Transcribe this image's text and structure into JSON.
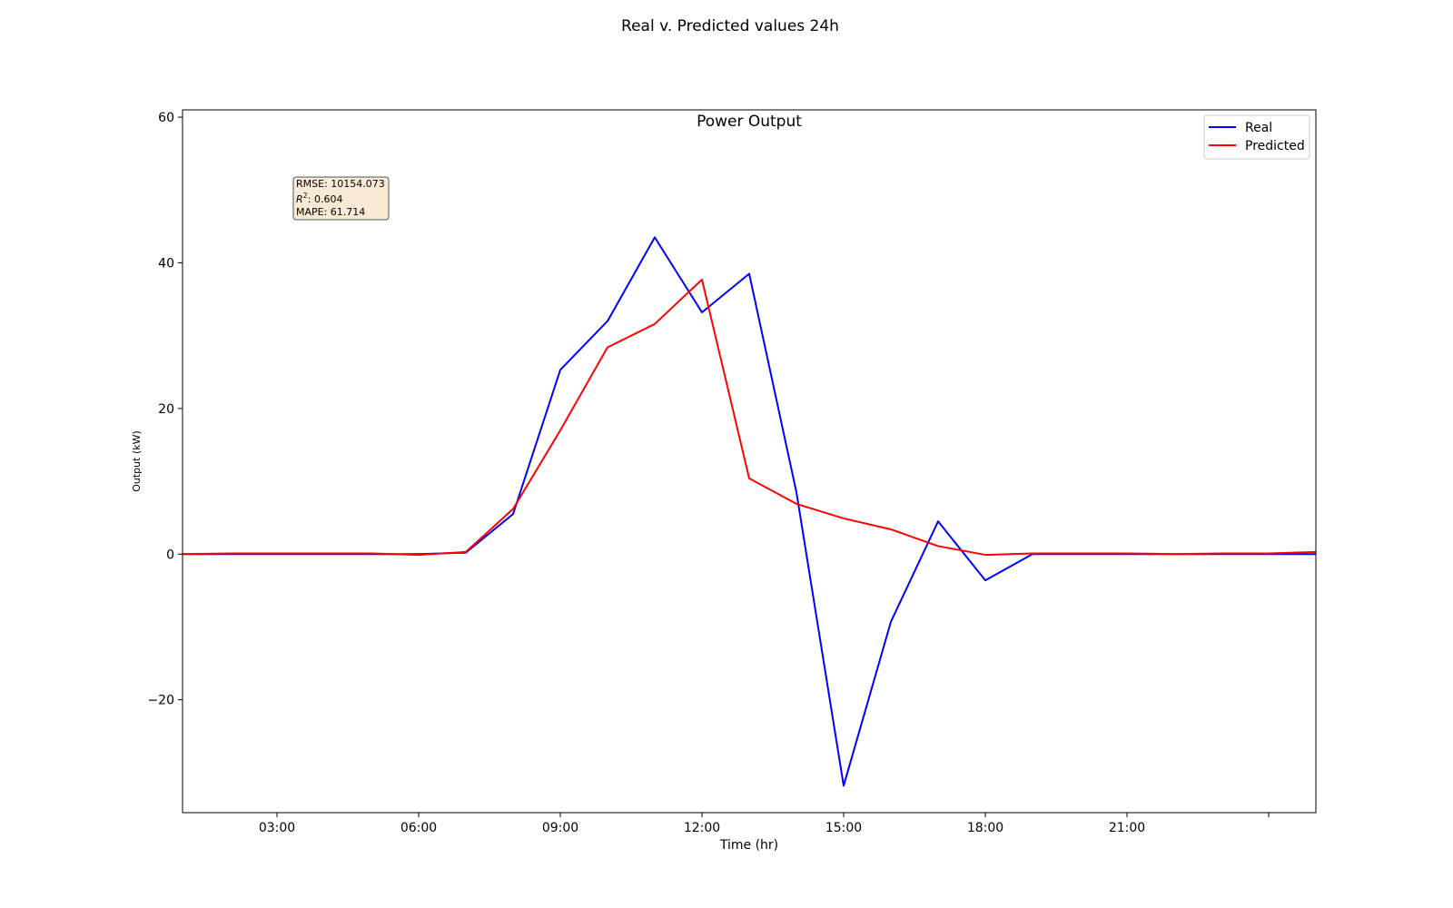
{
  "figure": {
    "suptitle": "Real v. Predicted values 24h"
  },
  "chart_data": {
    "type": "line",
    "title": "Power Output",
    "xlabel": "Time (hr)",
    "ylabel": "Output (kW)",
    "xlim": [
      1,
      25
    ],
    "ylim": [
      -35.5,
      61
    ],
    "x_ticks": [
      3,
      6,
      9,
      12,
      15,
      18,
      21,
      24
    ],
    "x_tick_labels": [
      "03:00",
      "06:00",
      "09:00",
      "12:00",
      "15:00",
      "18:00",
      "21:00",
      ""
    ],
    "y_ticks": [
      -20,
      0,
      20,
      40,
      60
    ],
    "y_tick_labels": [
      "−20",
      "0",
      "20",
      "40",
      "60"
    ],
    "x": [
      1,
      2,
      3,
      4,
      5,
      6,
      7,
      8,
      9,
      10,
      11,
      12,
      13,
      14,
      15,
      16,
      17,
      18,
      19,
      20,
      21,
      22,
      23,
      24,
      25
    ],
    "series": [
      {
        "name": "Real",
        "color": "#0000ff",
        "values": [
          0,
          0,
          0,
          0,
          0,
          0,
          0.2,
          5.5,
          25.3,
          32,
          43.5,
          33.2,
          38.5,
          8.5,
          -31.8,
          -9.3,
          4.5,
          -3.6,
          0,
          0,
          0,
          0,
          0,
          0,
          0
        ]
      },
      {
        "name": "Predicted",
        "color": "#ff0000",
        "values": [
          0,
          0.1,
          0.1,
          0.1,
          0.1,
          -0.1,
          0.3,
          6.2,
          17,
          28.4,
          31.6,
          37.7,
          10.4,
          6.9,
          4.9,
          3.4,
          1.1,
          -0.1,
          0.1,
          0.1,
          0.1,
          0,
          0.1,
          0.1,
          0.3
        ]
      }
    ],
    "legend_position": "top-right",
    "grid": false,
    "stats_box": {
      "rmse": "RMSE: 10154.073",
      "r2_symbol": "R",
      "r2_exp": "2",
      "r2_value": ": 0.604",
      "mape": "MAPE: 61.714",
      "background": "#f9ead5"
    }
  }
}
